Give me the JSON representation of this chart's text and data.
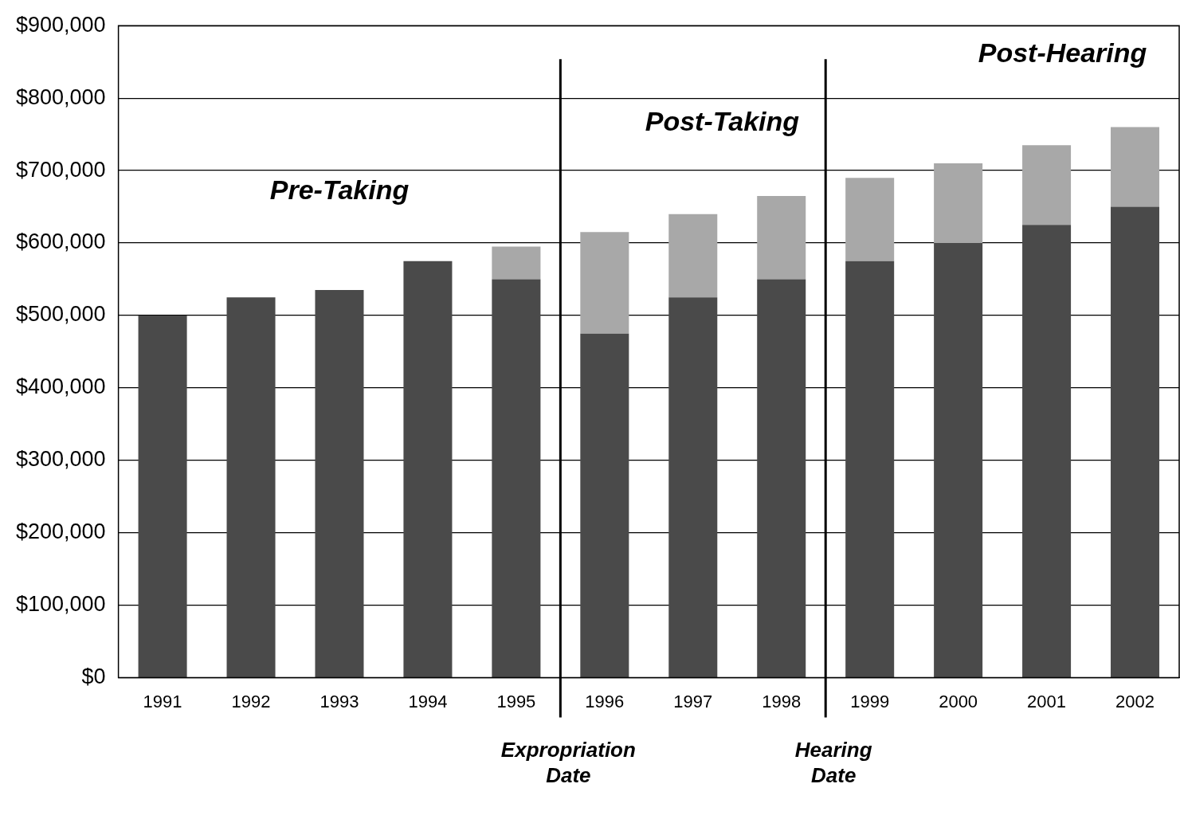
{
  "chart_data": {
    "type": "bar",
    "stacked": true,
    "categories": [
      "1991",
      "1992",
      "1993",
      "1994",
      "1995",
      "1996",
      "1997",
      "1998",
      "1999",
      "2000",
      "2001",
      "2002"
    ],
    "series": [
      {
        "color": "#4a4a4a",
        "values": [
          500000,
          525000,
          535000,
          575000,
          550000,
          475000,
          525000,
          550000,
          575000,
          600000,
          625000,
          650000
        ]
      },
      {
        "color": "#a8a8a8",
        "values": [
          0,
          0,
          0,
          0,
          45000,
          140000,
          115000,
          115000,
          115000,
          110000,
          110000,
          110000
        ]
      }
    ],
    "ylim": [
      0,
      900000
    ],
    "yticks": [
      {
        "value": 0,
        "label": "$0"
      },
      {
        "value": 100000,
        "label": "$100,000"
      },
      {
        "value": 200000,
        "label": "$200,000"
      },
      {
        "value": 300000,
        "label": "$300,000"
      },
      {
        "value": 400000,
        "label": "$400,000"
      },
      {
        "value": 500000,
        "label": "$500,000"
      },
      {
        "value": 600000,
        "label": "$600,000"
      },
      {
        "value": 700000,
        "label": "$700,000"
      },
      {
        "value": 800000,
        "label": "$800,000"
      },
      {
        "value": 900000,
        "label": "$900,000"
      }
    ],
    "grid": "y",
    "annotations": [
      "Pre-Taking",
      "Post-Taking",
      "Post-Hearing",
      "Expropriation Date",
      "Hearing Date"
    ]
  }
}
